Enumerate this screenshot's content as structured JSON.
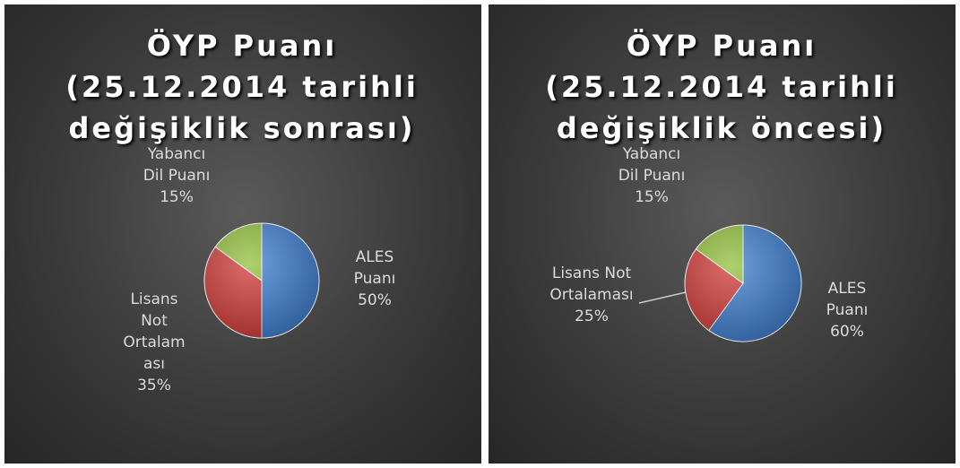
{
  "chart_data": [
    {
      "type": "pie",
      "title": "ÖYP Puanı (25.12.2014 tarihli değişiklik sonrası)",
      "categories": [
        "ALES Puanı",
        "Lisans Not Ortalaması",
        "Yabancı Dil Puanı"
      ],
      "values": [
        50,
        35,
        15
      ],
      "value_labels": [
        "50%",
        "35%",
        "15%"
      ],
      "colors": [
        "#3f7fd0",
        "#d23c3a",
        "#93c13e"
      ]
    },
    {
      "type": "pie",
      "title": "ÖYP Puanı (25.12.2014 tarihli değişiklik öncesi)",
      "categories": [
        "ALES Puanı",
        "Lisans Not Ortalaması",
        "Yabancı Dil Puanı"
      ],
      "values": [
        60,
        25,
        15
      ],
      "value_labels": [
        "60%",
        "25%",
        "15%"
      ],
      "colors": [
        "#3f7fd0",
        "#d23c3a",
        "#93c13e"
      ]
    }
  ]
}
